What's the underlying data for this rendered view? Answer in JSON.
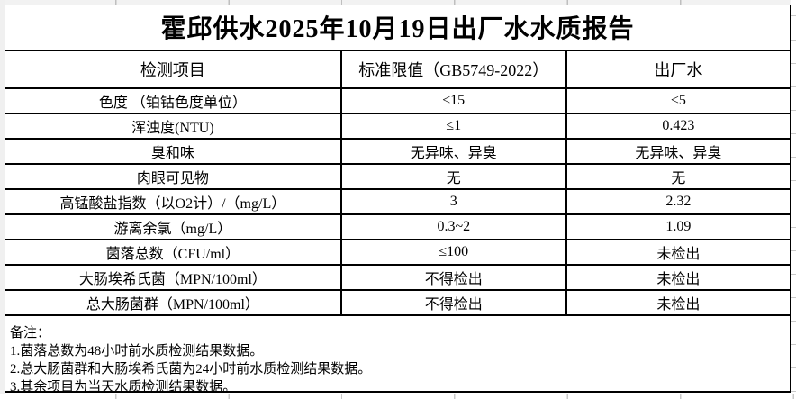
{
  "title": "霍邱供水2025年10月19日出厂水水质报告",
  "table": {
    "headers": [
      "检测项目",
      "标准限值（GB5749-2022）",
      "出厂水"
    ],
    "rows": [
      [
        "色度 （铂钴色度单位）",
        "≤15",
        "<5"
      ],
      [
        "浑浊度(NTU)",
        "≤1",
        "0.423"
      ],
      [
        "臭和味",
        "无异味、异臭",
        "无异味、异臭"
      ],
      [
        "肉眼可见物",
        "无",
        "无"
      ],
      [
        "高锰酸盐指数（以O2计）/（mg/L）",
        "3",
        "2.32"
      ],
      [
        "游离余氯（mg/L）",
        "0.3~2",
        "1.09"
      ],
      [
        "菌落总数（CFU/ml）",
        "≤100",
        "未检出"
      ],
      [
        "大肠埃希氏菌（MPN/100ml）",
        "不得检出",
        "未检出"
      ],
      [
        "总大肠菌群（MPN/100ml）",
        "不得检出",
        "未检出"
      ]
    ]
  },
  "notes": {
    "label": "备注：",
    "items": [
      "1.菌落总数为48小时前水质检测结果数据。",
      "2.总大肠菌群和大肠埃希氏菌为24小时前水质检测结果数据。",
      "3.其余项目为当天水质检测结果数据。"
    ]
  },
  "colors": {
    "border": "#000000",
    "text": "#000000",
    "background": "#ffffff",
    "margin_background": "#f0f0f0",
    "gridline": "#c9c9c9"
  }
}
